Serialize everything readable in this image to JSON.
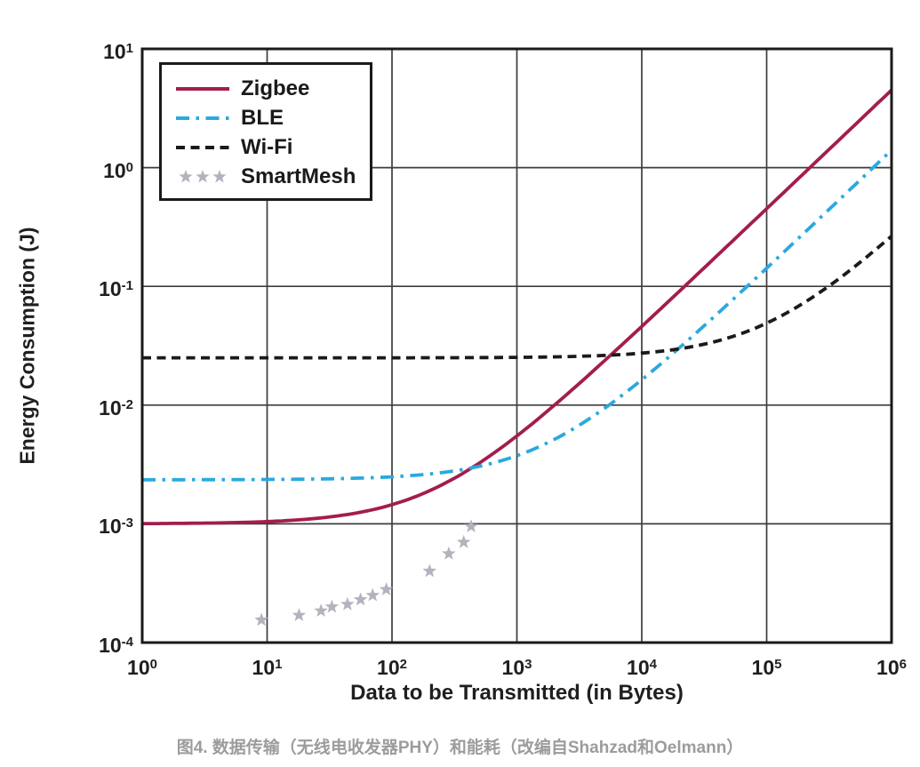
{
  "caption": {
    "text": "图4. 数据传输（无线电收发器PHY）和能耗（改编自Shahzad和Oelmann）",
    "color": "#9c9c9c"
  },
  "chart_data": {
    "type": "line",
    "title": "",
    "xlabel": "Data to be Transmitted (in Bytes)",
    "ylabel": "Energy Consumption (J)",
    "x_scale": "log",
    "y_scale": "log",
    "xlim": [
      1,
      1000000
    ],
    "ylim": [
      0.0001,
      10
    ],
    "x_tick_exponents": [
      0,
      1,
      2,
      3,
      4,
      5,
      6
    ],
    "y_tick_exponents": [
      1,
      0,
      -1,
      -2,
      -3,
      -4
    ],
    "grid": true,
    "legend_position": "top-left",
    "colors": {
      "grid": "#3d3d3d",
      "frame": "#1a1a1a",
      "text": "#1f1f1f"
    },
    "series": [
      {
        "name": "Zigbee",
        "style": "solid",
        "color": "#a31d4f",
        "model": {
          "base_j": 0.001,
          "joules_per_byte": 4.5e-06
        },
        "points": [
          [
            1,
            0.001
          ],
          [
            10,
            0.00105
          ],
          [
            100,
            0.00145
          ],
          [
            316,
            0.0024
          ],
          [
            1000,
            0.0055
          ],
          [
            3160,
            0.0152
          ],
          [
            10000,
            0.046
          ],
          [
            31600,
            0.143
          ],
          [
            100000,
            0.451
          ],
          [
            316000,
            1.42
          ],
          [
            1000000,
            4.5
          ]
        ]
      },
      {
        "name": "BLE",
        "style": "dash-dot",
        "color": "#2aa9df",
        "model": {
          "base_j": 0.00235,
          "joules_per_byte": 1.4e-06
        },
        "points": [
          [
            1,
            0.00235
          ],
          [
            10,
            0.00236
          ],
          [
            100,
            0.00249
          ],
          [
            316,
            0.00279
          ],
          [
            1000,
            0.00375
          ],
          [
            3160,
            0.0068
          ],
          [
            10000,
            0.0164
          ],
          [
            31600,
            0.0466
          ],
          [
            100000,
            0.142
          ],
          [
            316000,
            0.445
          ],
          [
            1000000,
            1.4
          ]
        ]
      },
      {
        "name": "Wi-Fi",
        "style": "dashed",
        "color": "#1a1a1a",
        "model": {
          "base_j": 0.025,
          "joules_per_byte": 2.4e-07
        },
        "points": [
          [
            1,
            0.025
          ],
          [
            10,
            0.025
          ],
          [
            100,
            0.025
          ],
          [
            1000,
            0.0252
          ],
          [
            3160,
            0.0258
          ],
          [
            10000,
            0.0274
          ],
          [
            31600,
            0.0326
          ],
          [
            100000,
            0.049
          ],
          [
            316000,
            0.101
          ],
          [
            1000000,
            0.265
          ]
        ]
      },
      {
        "name": "SmartMesh",
        "style": "stars",
        "color": "#b3b3be",
        "points": [
          [
            9,
            0.000155
          ],
          [
            18,
            0.00017
          ],
          [
            27,
            0.000185
          ],
          [
            33,
            0.0002
          ],
          [
            44,
            0.00021
          ],
          [
            56,
            0.00023
          ],
          [
            70,
            0.00025
          ],
          [
            90,
            0.00028
          ],
          [
            200,
            0.0004
          ],
          [
            285,
            0.00056
          ],
          [
            375,
            0.0007
          ],
          [
            430,
            0.00095
          ]
        ]
      }
    ]
  }
}
